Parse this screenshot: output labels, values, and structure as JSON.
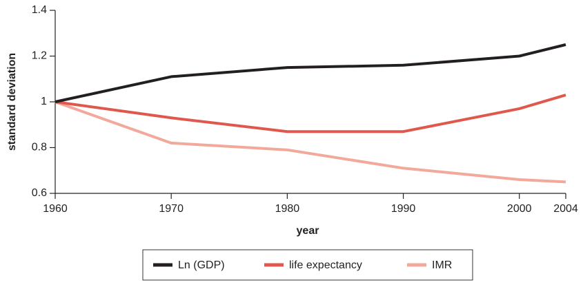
{
  "chart_data": {
    "type": "line",
    "x_label": "year",
    "y_label": "standard deviation",
    "x": [
      1960,
      1970,
      1980,
      1990,
      2000,
      2004
    ],
    "xlim": [
      1960,
      2004
    ],
    "xticks": [
      1960,
      1970,
      1980,
      1990,
      2000,
      2004
    ],
    "ylim": [
      0.6,
      1.4
    ],
    "yticks": [
      0.6,
      0.8,
      1,
      1.2,
      1.4
    ],
    "grid": false,
    "legend": "bottom",
    "series": [
      {
        "name": "Ln (GDP)",
        "color": "#231f20",
        "values": [
          1,
          1.11,
          1.15,
          1.16,
          1.2,
          1.25
        ]
      },
      {
        "name": "life expectancy",
        "color": "#e0584b",
        "values": [
          1,
          0.93,
          0.87,
          0.87,
          0.97,
          1.03
        ]
      },
      {
        "name": "IMR",
        "color": "#f2a99b",
        "values": [
          1,
          0.82,
          0.79,
          0.71,
          0.66,
          0.65
        ]
      }
    ]
  }
}
